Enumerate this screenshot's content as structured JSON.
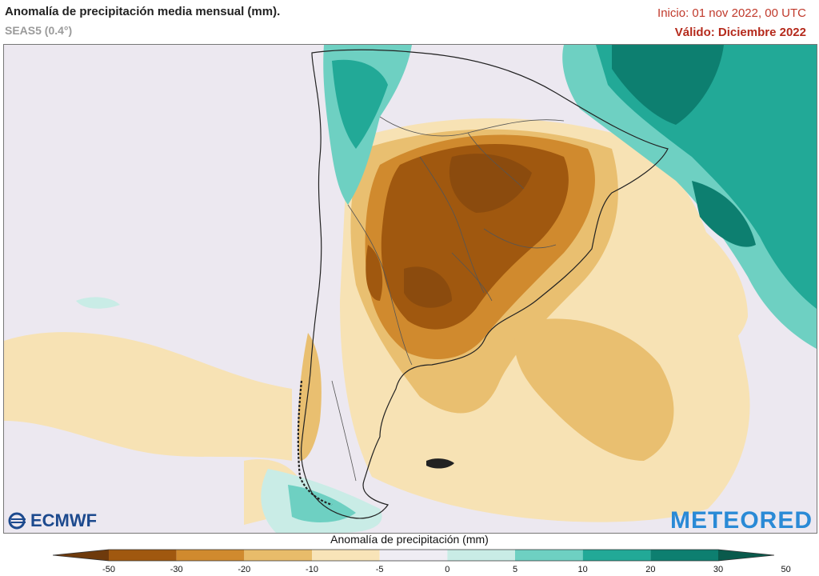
{
  "header": {
    "title": "Anomalía de precipitación media mensual (mm).",
    "subtitle": "SEAS5 (0.4°)",
    "init": "Inicio: 01 nov 2022, 00 UTC",
    "valid": "Válido: Diciembre 2022"
  },
  "logos": {
    "left": "ECMWF",
    "right": "METEORED"
  },
  "legend": {
    "title": "Anomalía de precipitación (mm)",
    "ticks": [
      "-50",
      "-30",
      "-20",
      "-10",
      "-5",
      "0",
      "5",
      "10",
      "20",
      "30",
      "50"
    ],
    "colors": [
      "#6e3a0c",
      "#a0580f",
      "#d08a2e",
      "#e8bc6a",
      "#f8e4b8",
      "#efedf4",
      "#c9ece6",
      "#6ed0c2",
      "#22a997",
      "#0d7f70",
      "#0a5a4c"
    ]
  }
}
